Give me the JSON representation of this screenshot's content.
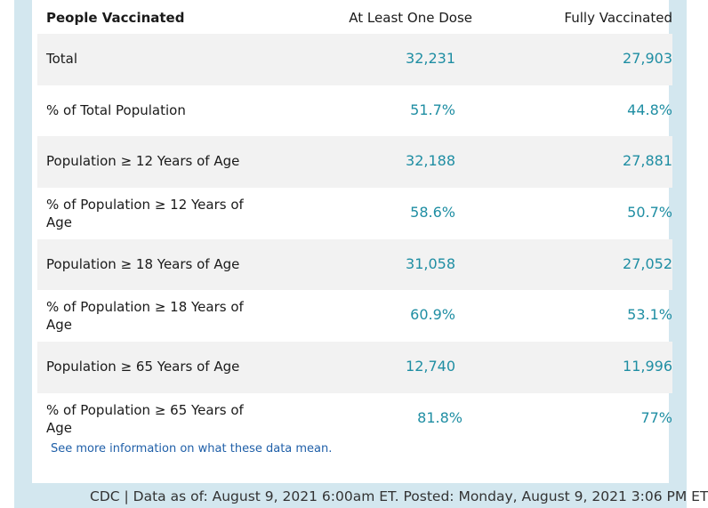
{
  "table": {
    "headers": {
      "category": "People Vaccinated",
      "one_dose": "At Least One Dose",
      "fully": "Fully Vaccinated"
    },
    "rows": [
      {
        "label": "Total",
        "one_dose": "32,231",
        "fully": "27,903"
      },
      {
        "label": "% of Total Population",
        "one_dose": "51.7%",
        "fully": "44.8%"
      },
      {
        "label": "Population ≥ 12 Years of Age",
        "one_dose": "32,188",
        "fully": "27,881"
      },
      {
        "label": "% of Population ≥ 12 Years of Age",
        "one_dose": "58.6%",
        "fully": "50.7%"
      },
      {
        "label": "Population ≥ 18 Years of Age",
        "one_dose": "31,058",
        "fully": "27,052"
      },
      {
        "label": "% of Population ≥ 18 Years of Age",
        "one_dose": "60.9%",
        "fully": "53.1%"
      },
      {
        "label": "Population ≥ 65 Years of Age",
        "one_dose": "12,740",
        "fully": "11,996"
      },
      {
        "label": "% of Population ≥ 65 Years of Age",
        "one_dose": "81.8%",
        "fully": "77%"
      }
    ]
  },
  "more_info_link": "See more information on what these data mean.",
  "footer": "CDC | Data as of: August 9, 2021 6:00am ET. Posted: Monday, August 9, 2021 3:06 PM ET",
  "colors": {
    "frame": "#d3e7ef",
    "value": "#1f8ea3",
    "link": "#1f5fa8",
    "shaded_row": "#f2f2f2"
  }
}
